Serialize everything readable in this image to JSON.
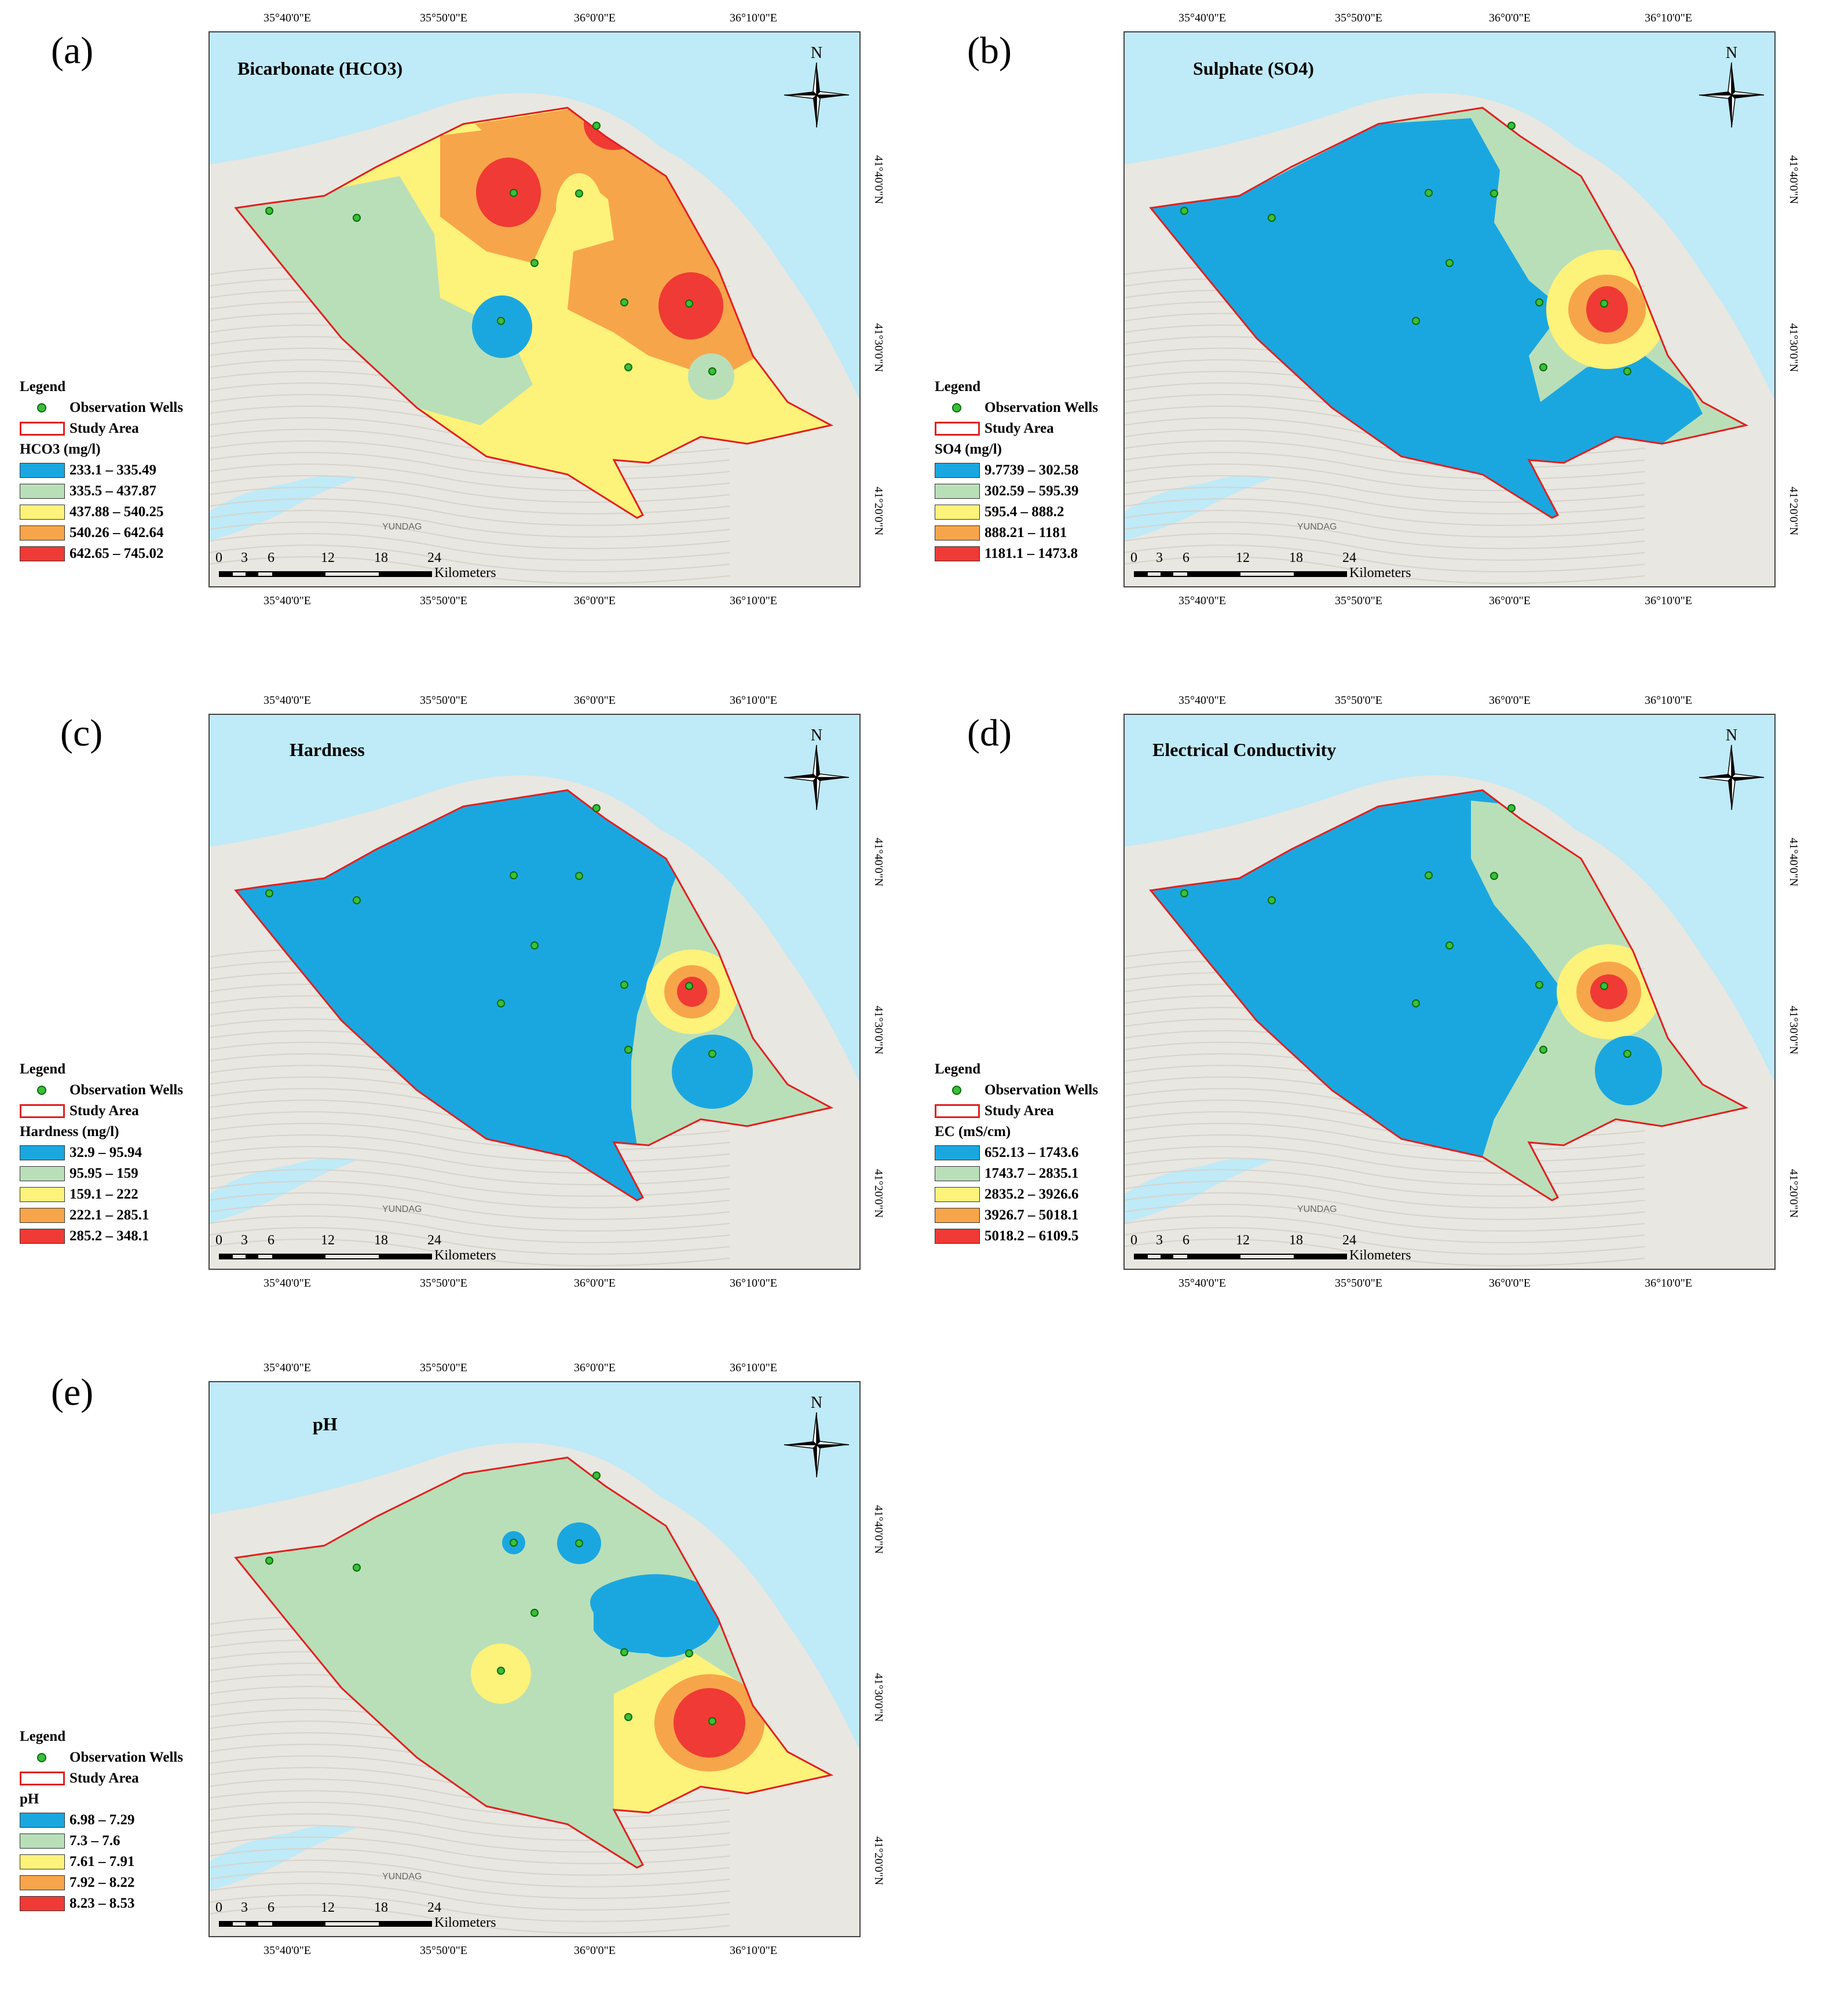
{
  "panels": [
    {
      "id": "a",
      "letter": "(a)",
      "title": "Bicarbonate (HCO3)",
      "legend_param": "HCO3 (mg/l)",
      "classes": [
        "233.1 – 335.49",
        "335.5 – 437.87",
        "437.88 – 540.25",
        "540.26 – 642.64",
        "642.65 – 745.02"
      ]
    },
    {
      "id": "b",
      "letter": "(b)",
      "title": "Sulphate (SO4)",
      "legend_param": "SO4 (mg/l)",
      "classes": [
        "9.7739 – 302.58",
        "302.59 – 595.39",
        "595.4 – 888.2",
        "888.21 – 1181",
        "1181.1 – 1473.8"
      ]
    },
    {
      "id": "c",
      "letter": "(c)",
      "title": "Hardness",
      "legend_param": "Hardness (mg/l)",
      "classes": [
        "32.9 – 95.94",
        "95.95 – 159",
        "159.1 – 222",
        "222.1 – 285.1",
        "285.2 – 348.1"
      ]
    },
    {
      "id": "d",
      "letter": "(d)",
      "title": "Electrical Conductivity",
      "legend_param": "EC (mS/cm)",
      "classes": [
        "652.13 – 1743.6",
        "1743.7 – 2835.1",
        "2835.2 – 3926.6",
        "3926.7 – 5018.1",
        "5018.2 – 6109.5"
      ]
    },
    {
      "id": "e",
      "letter": "(e)",
      "title": "pH",
      "legend_param": "pH",
      "classes": [
        "6.98 – 7.29",
        "7.3 – 7.6",
        "7.61 – 7.91",
        "7.92 – 8.22",
        "8.23 – 8.53"
      ]
    }
  ],
  "legend": {
    "heading": "Legend",
    "wells": "Observation Wells",
    "study_area": "Study Area"
  },
  "class_colors": [
    "#1aa7e0",
    "#b9dfb9",
    "#fdf27a",
    "#f7a54a",
    "#f03a35"
  ],
  "coords": {
    "lon": [
      "35°40'0\"E",
      "35°50'0\"E",
      "36°0'0\"E",
      "36°10'0\"E"
    ],
    "lat": [
      "41°40'0\"N",
      "41°30'0\"N",
      "41°20'0\"N"
    ]
  },
  "north": "N",
  "scale": {
    "ticks": [
      "0",
      "3",
      "6",
      "12",
      "18",
      "24"
    ],
    "unit": "Kilometers"
  },
  "basemap_labels": {
    "mountain": "YUNDAG"
  }
}
